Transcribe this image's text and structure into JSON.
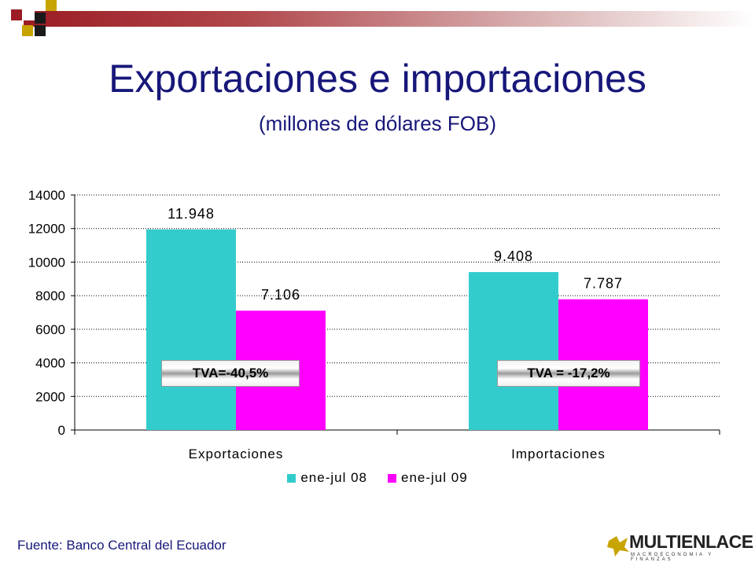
{
  "slide": {
    "title": "Exportaciones e importaciones",
    "subtitle": "(millones de dólares FOB)",
    "source": "Fuente: Banco Central del Ecuador",
    "logo": {
      "name": "MULTIENLACE",
      "tagline": "MACROECONOMIA Y FINANZAS"
    }
  },
  "annotations": {
    "tva_exportaciones": "TVA=-40,5%",
    "tva_importaciones": "TVA = -17,2%"
  },
  "colors": {
    "accent_red": "#9b1c24",
    "title_blue": "#17177a",
    "series_2008": "#33cccc",
    "series_2009": "#ff00ff"
  },
  "chart_data": {
    "type": "bar",
    "categories": [
      "Exportaciones",
      "Importaciones"
    ],
    "series": [
      {
        "name": "ene-jul 08",
        "values": [
          11948,
          9408
        ],
        "labels": [
          "11.948",
          "9.408"
        ],
        "color": "#33cccc"
      },
      {
        "name": "ene-jul 09",
        "values": [
          7106,
          7787
        ],
        "labels": [
          "7.106",
          "7.787"
        ],
        "color": "#ff00ff"
      }
    ],
    "ylim": [
      0,
      14000
    ],
    "yticks": [
      0,
      2000,
      4000,
      6000,
      8000,
      10000,
      12000,
      14000
    ],
    "grid": true,
    "legend": "bottom"
  }
}
